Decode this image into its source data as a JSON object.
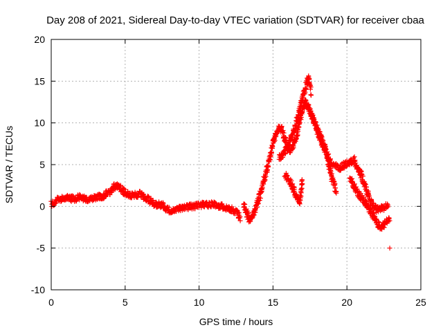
{
  "chart_data": {
    "type": "scatter",
    "title": "Day 208 of 2021, Sidereal Day-to-day VTEC variation (SDTVAR) for receiver cbaa",
    "xlabel": "GPS time / hours",
    "ylabel": "SDTVAR / TECUs",
    "xlim": [
      0,
      25
    ],
    "ylim": [
      -10,
      20
    ],
    "xticks": [
      0,
      5,
      10,
      15,
      20,
      25
    ],
    "yticks": [
      -10,
      -5,
      0,
      5,
      10,
      15,
      20
    ],
    "xtick_labels": [
      "0",
      "5",
      "10",
      "15",
      "20",
      "25"
    ],
    "ytick_labels": [
      "-10",
      "-5",
      "0",
      "5",
      "10",
      "15",
      "20"
    ],
    "grid": true,
    "marker": "+",
    "color": "#ff0000",
    "series": [
      {
        "name": "SDTVAR",
        "description": "approximate envelope traces of the plotted points",
        "tracks": [
          {
            "x": [
              0,
              0.5,
              1,
              1.5,
              2,
              2.5,
              3,
              3.5,
              4,
              4.4,
              4.8,
              5.2,
              5.6,
              6,
              6.5,
              7,
              7.5,
              8,
              8.5,
              9,
              9.5,
              10,
              10.5,
              11,
              11.5,
              12,
              12.5,
              12.8
            ],
            "y": [
              0.3,
              0.8,
              1.0,
              0.9,
              1.1,
              0.8,
              1.0,
              1.2,
              1.8,
              2.6,
              1.9,
              1.4,
              1.3,
              1.5,
              0.9,
              0.3,
              0.1,
              -0.5,
              -0.3,
              -0.2,
              0,
              0.1,
              0.2,
              0.2,
              0,
              -0.2,
              -0.6,
              -1.4
            ]
          },
          {
            "x": [
              13,
              13.4,
              13.8,
              14.2,
              14.5,
              14.8,
              15.0,
              15.2,
              15.4,
              15.6,
              15.8,
              16.0,
              16.2,
              16.4,
              16.6,
              16.8,
              17.0,
              17.2,
              17.4,
              17.6,
              17.8,
              18.0,
              18.3,
              18.6,
              19.0,
              19.5,
              20.0,
              20.5,
              21.0,
              21.3,
              21.6,
              22.0,
              22.4,
              22.8
            ],
            "y": [
              0.4,
              -1.6,
              -0.5,
              1.8,
              3.8,
              5.8,
              7.5,
              8.6,
              9.3,
              9.2,
              8.1,
              7.0,
              6.5,
              7.3,
              8.4,
              10.2,
              11.5,
              12.5,
              11.8,
              11.0,
              10.2,
              9.0,
              7.6,
              6.4,
              5.0,
              4.5,
              5.2,
              5.5,
              3.6,
              2.0,
              0.5,
              -0.4,
              -0.2,
              0.1
            ]
          },
          {
            "x": [
              15.4,
              15.8,
              16.2,
              16.5,
              16.8,
              17.0,
              17.2,
              17.4,
              17.6
            ],
            "y": [
              5.8,
              6.5,
              8.0,
              9.5,
              11.5,
              13.0,
              14.2,
              15.5,
              13.5
            ]
          },
          {
            "x": [
              15.8,
              16.2,
              16.5,
              16.8,
              17.0
            ],
            "y": [
              3.8,
              2.9,
              1.5,
              0.4,
              3.0
            ]
          },
          {
            "x": [
              17.5,
              17.8,
              18.2,
              18.5,
              18.8,
              19.0,
              19.3
            ],
            "y": [
              11.5,
              10.0,
              8.5,
              7.0,
              4.8,
              3.2,
              1.8
            ]
          },
          {
            "x": [
              20.2,
              20.5,
              20.8,
              21.2,
              21.6,
              22.0,
              22.3,
              22.6,
              22.9
            ],
            "y": [
              3.5,
              2.4,
              1.5,
              0.5,
              -0.5,
              -2.0,
              -2.5,
              -2.0,
              -1.5
            ]
          },
          {
            "x": [
              22.9
            ],
            "y": [
              -5.0
            ]
          }
        ]
      }
    ]
  }
}
